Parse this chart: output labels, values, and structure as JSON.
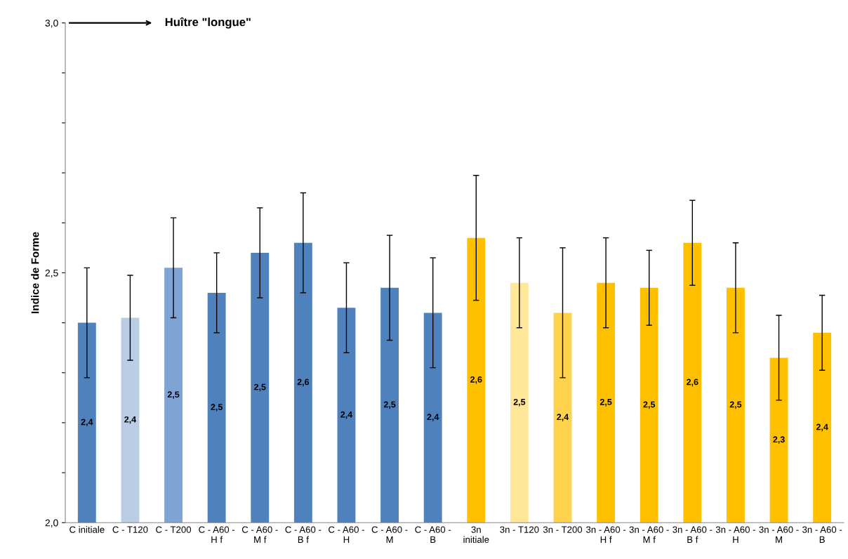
{
  "chart_data": {
    "type": "bar",
    "ylabel": "Indice de Forme",
    "categories": [
      "C initiale",
      "C - T120",
      "C - T200",
      "C - A60 -\nH f",
      "C - A60 -\nM f",
      "C - A60 -\nB f",
      "C - A60 -\nH",
      "C - A60 -\nM",
      "C - A60 -\nB",
      "3n\ninitiale",
      "3n - T120",
      "3n - T200",
      "3n - A60 -\nH f",
      "3n - A60 -\nM f",
      "3n - A60 -\nB f",
      "3n - A60 -\nH",
      "3n - A60 -\nM",
      "3n - A60 -\nB"
    ],
    "values": [
      2.4,
      2.41,
      2.51,
      2.46,
      2.54,
      2.56,
      2.43,
      2.47,
      2.42,
      2.57,
      2.48,
      2.42,
      2.48,
      2.47,
      2.56,
      2.47,
      2.33,
      2.38
    ],
    "errors": [
      0.11,
      0.085,
      0.1,
      0.08,
      0.09,
      0.1,
      0.09,
      0.105,
      0.11,
      0.125,
      0.09,
      0.13,
      0.09,
      0.075,
      0.085,
      0.09,
      0.085,
      0.075
    ],
    "value_labels": [
      "2,4",
      "2,4",
      "2,5",
      "2,5",
      "2,5",
      "2,6",
      "2,4",
      "2,5",
      "2,4",
      "2,6",
      "2,5",
      "2,4",
      "2,5",
      "2,5",
      "2,6",
      "2,5",
      "2,3",
      "2,4"
    ],
    "colors": [
      "#4f81bd",
      "#b9cde5",
      "#7fa3d3",
      "#4f81bd",
      "#4f81bd",
      "#4f81bd",
      "#4f81bd",
      "#4f81bd",
      "#4f81bd",
      "#ffc000",
      "#ffe699",
      "#ffd24d",
      "#ffc000",
      "#ffc000",
      "#ffc000",
      "#ffc000",
      "#ffc000",
      "#ffc000"
    ],
    "ylim": [
      2.0,
      3.0
    ],
    "yticks": [
      {
        "value": 2.0,
        "label": "2,0"
      },
      {
        "value": 2.1,
        "label": null
      },
      {
        "value": 2.2,
        "label": null
      },
      {
        "value": 2.3,
        "label": null
      },
      {
        "value": 2.4,
        "label": null
      },
      {
        "value": 2.5,
        "label": "2,5"
      },
      {
        "value": 2.6,
        "label": null
      },
      {
        "value": 2.7,
        "label": null
      },
      {
        "value": 2.8,
        "label": null
      },
      {
        "value": 2.9,
        "label": null
      },
      {
        "value": 3.0,
        "label": "3,0"
      }
    ],
    "annotations": [
      "Huître \"longue\""
    ],
    "grid": false
  }
}
